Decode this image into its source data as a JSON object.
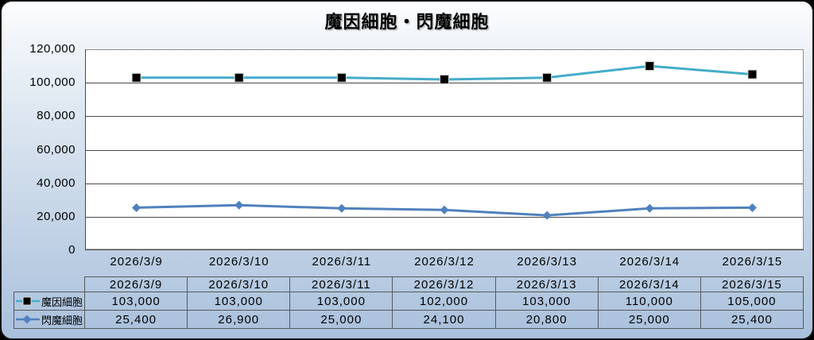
{
  "title": "魔因細胞・閃魔細胞",
  "chart_data": {
    "type": "line",
    "title": "魔因細胞・閃魔細胞",
    "categories": [
      "2026/3/9",
      "2026/3/10",
      "2026/3/11",
      "2026/3/12",
      "2026/3/13",
      "2026/3/14",
      "2026/3/15"
    ],
    "series": [
      {
        "name": "魔因細胞",
        "values": [
          103000,
          103000,
          103000,
          102000,
          103000,
          110000,
          105000
        ],
        "color": "#45ACC8",
        "marker": "square",
        "marker_color": "#000000"
      },
      {
        "name": "閃魔細胞",
        "values": [
          25400,
          26900,
          25000,
          24100,
          20800,
          25000,
          25400
        ],
        "color": "#4F81BD",
        "marker": "diamond",
        "marker_color": "#4F81BD"
      }
    ],
    "ylim": [
      0,
      120000
    ],
    "ytick_step": 20000,
    "ytick_labels": [
      "0",
      "20,000",
      "40,000",
      "60,000",
      "80,000",
      "100,000",
      "120,000"
    ],
    "grid": true,
    "legend_position": "data-table-left",
    "data_table": true
  },
  "colors": {
    "background_top": "#FCFDFE",
    "background_bottom": "#A9C0DC",
    "outer_border": "#151515",
    "plot_background": "#FFFFFF",
    "plot_border": "#8C8C8C",
    "gridline": "#4A4A4A",
    "table_border": "#595959",
    "marker_halo": "#D9D9D9",
    "text": "#000000"
  }
}
